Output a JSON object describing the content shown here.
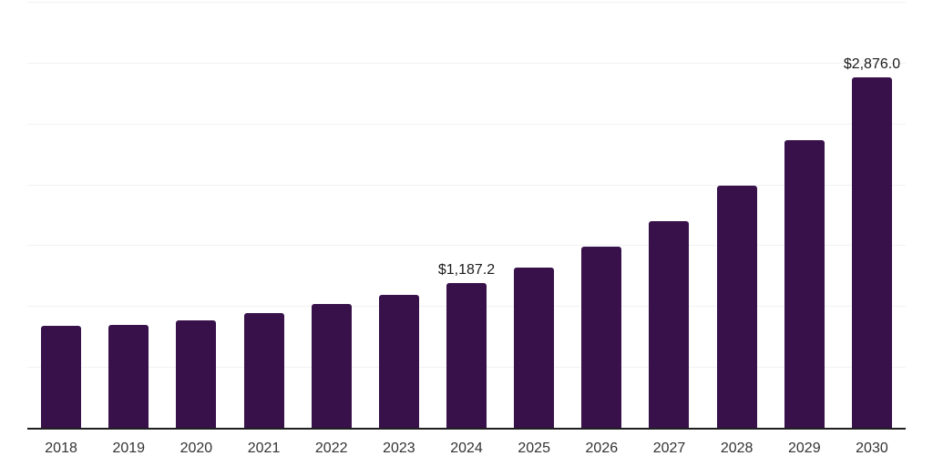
{
  "chart_data": {
    "type": "bar",
    "title": "",
    "xlabel": "",
    "ylabel": "",
    "categories": [
      "2018",
      "2019",
      "2020",
      "2021",
      "2022",
      "2023",
      "2024",
      "2025",
      "2026",
      "2027",
      "2028",
      "2029",
      "2030"
    ],
    "values": [
      835,
      845,
      880,
      945,
      1015,
      1090,
      1187.2,
      1315,
      1490,
      1700,
      1990,
      2360,
      2876
    ],
    "value_labels": [
      "",
      "",
      "",
      "",
      "",
      "",
      "$1,187.2",
      "",
      "",
      "",
      "",
      "",
      "$2,876.0"
    ],
    "ylim": [
      0,
      3500
    ],
    "gridline_step": 500,
    "grid": "horizontal-only",
    "legend_position": "none",
    "y_axis_tick_labels_visible": false,
    "colors": {
      "bar": "#38114B",
      "gridline": "#F2F2F2",
      "axis_line": "#1F1F1F",
      "tick_label": "#333333",
      "value_label": "#1A1A1A",
      "background": "#FFFFFF"
    }
  }
}
